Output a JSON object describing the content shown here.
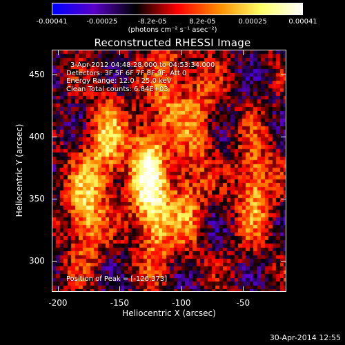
{
  "colorbar": {
    "ticks": [
      "-0.00041",
      "-0.00025",
      "-8.2e-05",
      "8.2e-05",
      "0.00025",
      "0.00041"
    ],
    "unit": "(photons cm⁻² s⁻¹ asec⁻²)",
    "colors": [
      "#0000ff",
      "#5a00c8",
      "#000000",
      "#ff0000",
      "#ff8c00",
      "#ffff66",
      "#ffffff"
    ]
  },
  "chart_data": {
    "type": "heatmap",
    "title": "Reconstructed RHESSI Image",
    "xlabel": "Heliocentric X (arcsec)",
    "ylabel": "Heliocentric Y (arcsec)",
    "xlim": [
      -205,
      -15
    ],
    "ylim": [
      275,
      470
    ],
    "xticks": [
      -200,
      -150,
      -100,
      -50
    ],
    "yticks": [
      300,
      350,
      400,
      450
    ],
    "peak": [
      -126,
      373
    ],
    "bright_ridges": [
      {
        "x": -178,
        "y": 340,
        "amp": 0.85
      },
      {
        "x": -160,
        "y": 395,
        "amp": 0.75
      },
      {
        "x": -128,
        "y": 373,
        "amp": 1.0
      },
      {
        "x": -120,
        "y": 330,
        "amp": 0.7
      },
      {
        "x": -95,
        "y": 350,
        "amp": 0.55
      },
      {
        "x": -85,
        "y": 420,
        "amp": 0.5
      },
      {
        "x": -40,
        "y": 360,
        "amp": 0.75
      },
      {
        "x": -110,
        "y": 440,
        "amp": 0.55
      }
    ]
  },
  "annotations": {
    "time": "3-Apr-2012 04:48:28.000 to 04:53:34.000",
    "detectors": "Detectors: 3F 5F 6F 7F 8F 9F, Att 0",
    "energy": "Energy Range: 12.0 - 25.0 keV",
    "clean": "Clean     Total counts: 6.84E+03",
    "peak": "Position of Peak = [-126,373]"
  },
  "timestamp": "30-Apr-2014 12:55"
}
